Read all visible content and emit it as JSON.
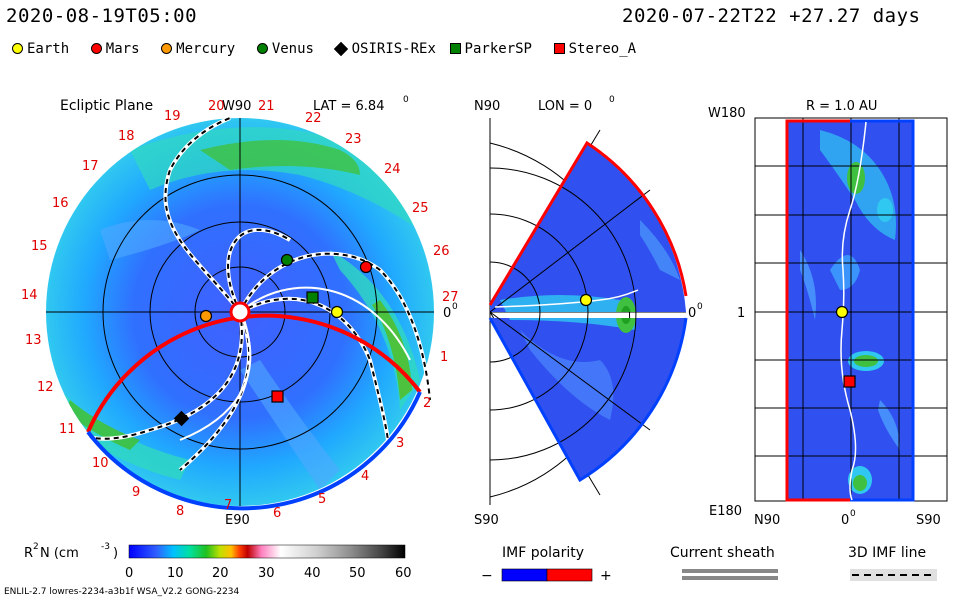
{
  "header": {
    "left_time": "2020-08-19T05:00",
    "right_time": "2020-07-22T22",
    "offset": "+27.27 days"
  },
  "legend": [
    {
      "label": "Earth",
      "color": "#ffff00",
      "shape": "circle"
    },
    {
      "label": "Mars",
      "color": "#ff0000",
      "shape": "circle"
    },
    {
      "label": "Mercury",
      "color": "#ff9900",
      "shape": "circle"
    },
    {
      "label": "Venus",
      "color": "#008000",
      "shape": "circle"
    },
    {
      "label": "OSIRIS-REx",
      "color": "#000000",
      "shape": "diamond"
    },
    {
      "label": "ParkerSP",
      "color": "#008000",
      "shape": "square"
    },
    {
      "label": "Stereo_A",
      "color": "#ff0000",
      "shape": "square"
    }
  ],
  "ecliptic": {
    "title": "Ecliptic Plane",
    "w90": "W90",
    "lat_label": "LAT = 6.84",
    "lat_sup": "0",
    "e90": "E90",
    "zero": "0",
    "zero_sup": "0",
    "sector_numbers": [
      "19",
      "20",
      "21",
      "22",
      "23",
      "24",
      "25",
      "26",
      "27",
      "1",
      "2",
      "3",
      "4",
      "5",
      "6",
      "7",
      "8",
      "9",
      "10",
      "11",
      "12",
      "13",
      "14",
      "15",
      "16",
      "17",
      "18"
    ]
  },
  "meridional": {
    "n90": "N90",
    "lon_label": "LON = 0",
    "lon_sup": "0",
    "s90": "S90",
    "zero": "0",
    "zero_sup": "0"
  },
  "radial": {
    "title": "R = 1.0 AU",
    "w180": "W180",
    "one": "1",
    "e180": "E180",
    "n90": "N90",
    "zero": "0",
    "zero_sup": "0",
    "s90": "S90"
  },
  "colorbar": {
    "label": "R",
    "label_sup": "2",
    "label_rest": " N (cm",
    "label_exp": "-3",
    "label_close": ")",
    "ticks": [
      "0",
      "10",
      "20",
      "30",
      "40",
      "50",
      "60"
    ],
    "colors": [
      "#0000ff",
      "#3060ff",
      "#00c0ff",
      "#00e0a0",
      "#20c020",
      "#c0e000",
      "#ffc000",
      "#ff4000",
      "#c00000",
      "#ff80c0",
      "#ffffff",
      "#d0d0d0",
      "#a0a0a0",
      "#606060",
      "#303030",
      "#000000"
    ]
  },
  "imf": {
    "title": "IMF polarity",
    "minus": "−",
    "plus": "+",
    "neg_color": "#0000ff",
    "pos_color": "#ff0000"
  },
  "sheath": {
    "title": "Current sheath"
  },
  "imf3d": {
    "title": "3D IMF line"
  },
  "footer": {
    "left": "ENLIL-2.7 lowres-2234-a3b1f WSA_V2.2 GONG-2234"
  },
  "chart_data": {
    "type": "heatmap",
    "description_panels": [
      "Ecliptic Plane",
      "Meridional (LON = 0)",
      "R = 1.0 AU"
    ],
    "colorbar_range": [
      0,
      60
    ],
    "colorbar_ticks": [
      0,
      10,
      20,
      30,
      40,
      50,
      60
    ],
    "ecliptic_lat_deg": 6.84,
    "meridional_lon_deg": 0,
    "radial_shell_au": 1.0
  }
}
